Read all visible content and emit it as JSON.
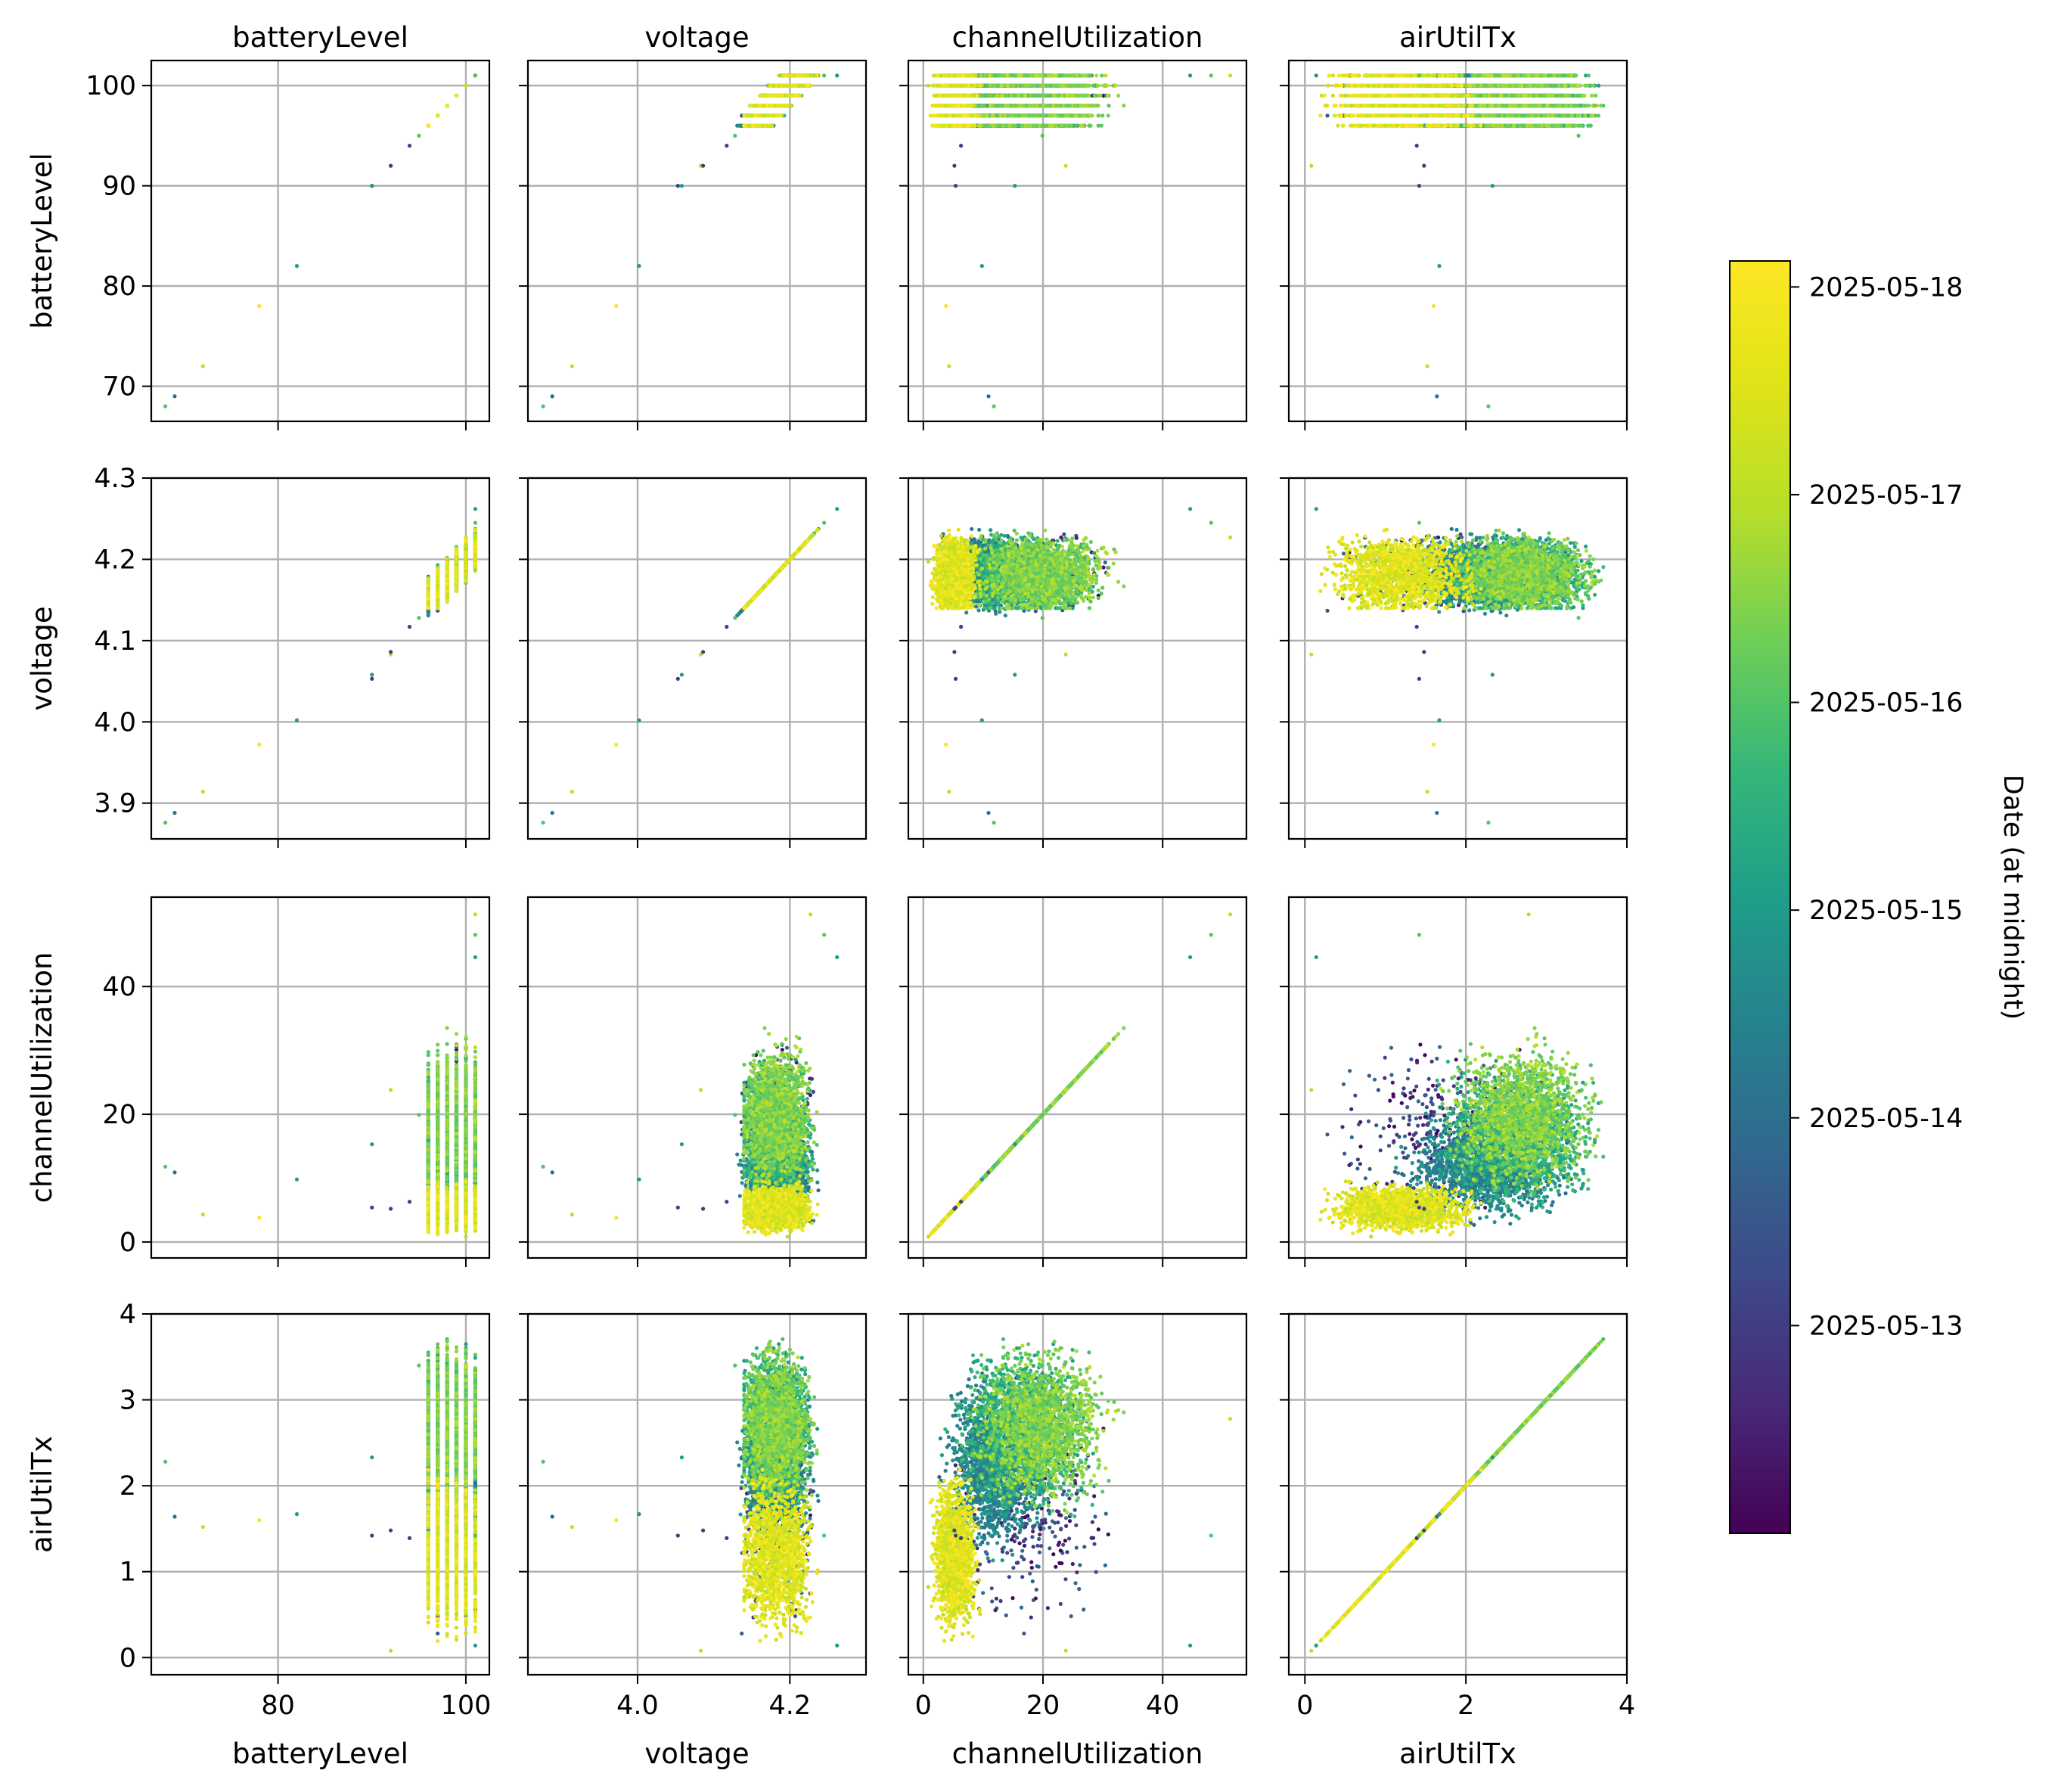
{
  "figure": {
    "columns": [
      "batteryLevel",
      "voltage",
      "channelUtilization",
      "airUtilTx"
    ]
  },
  "colors": {
    "colormap": "viridis",
    "grid": "#b0b0b0",
    "axes": "#000000"
  },
  "chart_data": {
    "type": "scatter",
    "variables": [
      {
        "name": "batteryLevel",
        "range": [
          66.5,
          102.5
        ],
        "ticks": [
          70,
          80,
          90,
          100
        ],
        "bottom_ticks": [
          80,
          100
        ]
      },
      {
        "name": "voltage",
        "range": [
          3.856,
          4.3
        ],
        "ticks": [
          3.9,
          4.0,
          4.1,
          4.2,
          4.3
        ],
        "tick_labels": [
          "3.9",
          "4.0",
          "4.1",
          "4.2",
          "4.3"
        ],
        "bottom_ticks": [
          4.0,
          4.2
        ],
        "bottom_tick_labels": [
          "4.0",
          "4.2"
        ]
      },
      {
        "name": "channelUtilization",
        "range": [
          -2.5,
          54
        ],
        "ticks": [
          0,
          20,
          40
        ],
        "bottom_ticks": [
          0,
          20,
          40
        ]
      },
      {
        "name": "airUtilTx",
        "range": [
          -0.2,
          4.0
        ],
        "ticks": [
          0,
          1,
          2,
          3,
          4
        ],
        "bottom_ticks": [
          0,
          2,
          4
        ]
      }
    ],
    "grid": true,
    "color_encoding": "date of each record",
    "colorbar": {
      "label": "Date (at midnight)",
      "ticks": [
        "2025-05-13",
        "2025-05-14",
        "2025-05-15",
        "2025-05-16",
        "2025-05-17",
        "2025-05-18"
      ],
      "range": [
        "2025-05-12",
        "2025-05-18 03:00"
      ],
      "colormap": "viridis",
      "position": "right"
    },
    "outliers": [
      {
        "batteryLevel": 68,
        "voltage": 3.876,
        "channelUtilization": 11.8,
        "airUtilTx": 2.28,
        "date": "2025-05-16"
      },
      {
        "batteryLevel": 69,
        "voltage": 3.888,
        "channelUtilization": 10.9,
        "airUtilTx": 1.64,
        "date": "2025-05-14"
      },
      {
        "batteryLevel": 72,
        "voltage": 3.914,
        "channelUtilization": 4.3,
        "airUtilTx": 1.52,
        "date": "2025-05-17"
      },
      {
        "batteryLevel": 78,
        "voltage": 3.972,
        "channelUtilization": 3.8,
        "airUtilTx": 1.6,
        "date": "2025-05-18"
      },
      {
        "batteryLevel": 82,
        "voltage": 4.002,
        "channelUtilization": 9.8,
        "airUtilTx": 1.67,
        "date": "2025-05-15"
      },
      {
        "batteryLevel": 90,
        "voltage": 4.053,
        "channelUtilization": 5.4,
        "airUtilTx": 1.42,
        "date": "2025-05-13"
      },
      {
        "batteryLevel": 90,
        "voltage": 4.058,
        "channelUtilization": 15.3,
        "airUtilTx": 2.33,
        "date": "2025-05-15"
      },
      {
        "batteryLevel": 92,
        "voltage": 4.083,
        "channelUtilization": 23.8,
        "airUtilTx": 0.08,
        "date": "2025-05-17"
      },
      {
        "batteryLevel": 92,
        "voltage": 4.086,
        "channelUtilization": 5.2,
        "airUtilTx": 1.48,
        "date": "2025-05-13"
      },
      {
        "batteryLevel": 94,
        "voltage": 4.117,
        "channelUtilization": 6.3,
        "airUtilTx": 1.39,
        "date": "2025-05-13"
      },
      {
        "batteryLevel": 95,
        "voltage": 4.128,
        "channelUtilization": 19.9,
        "airUtilTx": 3.4,
        "date": "2025-05-16"
      },
      {
        "batteryLevel": 101,
        "voltage": 4.262,
        "channelUtilization": 44.6,
        "airUtilTx": 0.14,
        "date": "2025-05-15"
      },
      {
        "batteryLevel": 101,
        "voltage": 4.227,
        "channelUtilization": 51.3,
        "airUtilTx": 2.78,
        "date": "2025-05-17"
      },
      {
        "batteryLevel": 101,
        "voltage": 4.245,
        "channelUtilization": 48.1,
        "airUtilTx": 1.42,
        "date": "2025-05-16"
      }
    ],
    "clusters": [
      {
        "date_range": [
          "2025-05-12",
          "2025-05-14"
        ],
        "batteryLevel": [
          96,
          101
        ],
        "voltage": [
          4.12,
          4.27
        ],
        "channelUtilization": [
          1,
          33
        ],
        "airUtilTx": [
          0.0,
          3.6
        ],
        "density": "sparse"
      },
      {
        "date_range": [
          "2025-05-14",
          "2025-05-15"
        ],
        "batteryLevel": [
          96,
          101
        ],
        "voltage": [
          4.13,
          4.27
        ],
        "channelUtilization": [
          2,
          22
        ],
        "airUtilTx": [
          1.0,
          3.5
        ],
        "density": "dense"
      },
      {
        "date_range": [
          "2025-05-15",
          "2025-05-16"
        ],
        "batteryLevel": [
          96,
          101
        ],
        "voltage": [
          4.14,
          4.27
        ],
        "channelUtilization": [
          3,
          30
        ],
        "airUtilTx": [
          1.5,
          3.8
        ],
        "density": "dense"
      },
      {
        "date_range": [
          "2025-05-16",
          "2025-05-17"
        ],
        "batteryLevel": [
          96,
          101
        ],
        "voltage": [
          4.14,
          4.28
        ],
        "channelUtilization": [
          6,
          34
        ],
        "airUtilTx": [
          1.6,
          3.8
        ],
        "density": "dense"
      },
      {
        "date_range": [
          "2025-05-17",
          "2025-05-18 03:00"
        ],
        "batteryLevel": [
          96,
          101
        ],
        "voltage": [
          4.14,
          4.28
        ],
        "channelUtilization": [
          0.5,
          10
        ],
        "airUtilTx": [
          0.1,
          2.3
        ],
        "density": "dense"
      }
    ]
  }
}
